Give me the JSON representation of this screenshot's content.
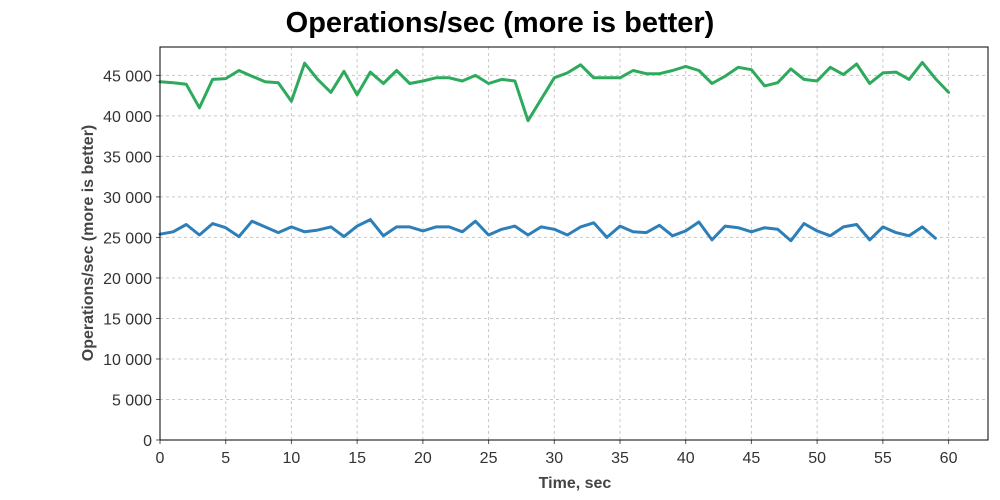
{
  "chart_data": {
    "type": "line",
    "title": "Operations/sec (more is better)",
    "xlabel": "Time, sec",
    "ylabel": "Operations/sec (more is better)",
    "xlim": [
      0,
      63
    ],
    "ylim": [
      0,
      48500
    ],
    "xticks": [
      0,
      5,
      10,
      15,
      20,
      25,
      30,
      35,
      40,
      45,
      50,
      55,
      60
    ],
    "yticks": [
      0,
      5000,
      10000,
      15000,
      20000,
      25000,
      30000,
      35000,
      40000,
      45000
    ],
    "ytick_labels": [
      "0",
      "5 000",
      "10 000",
      "15 000",
      "20 000",
      "25 000",
      "30 000",
      "35 000",
      "40 000",
      "45 000"
    ],
    "grid": true,
    "legend": "none",
    "series": [
      {
        "color": "#2eaa5c",
        "x": [
          0,
          1,
          2,
          3,
          4,
          5,
          6,
          7,
          8,
          9,
          10,
          11,
          12,
          13,
          14,
          15,
          16,
          17,
          18,
          19,
          20,
          21,
          22,
          23,
          24,
          25,
          26,
          27,
          28,
          30,
          31,
          32,
          33,
          34,
          35,
          36,
          37,
          38,
          39,
          40,
          41,
          42,
          43,
          44,
          45,
          46,
          47,
          48,
          49,
          50,
          51,
          52,
          53,
          54,
          55,
          56,
          57,
          58,
          59,
          60
        ],
        "values": [
          44200,
          44100,
          43900,
          41000,
          44500,
          44600,
          45600,
          44900,
          44200,
          44100,
          41800,
          46500,
          44500,
          42900,
          45500,
          42600,
          45400,
          44000,
          45600,
          44000,
          44300,
          44700,
          44700,
          44300,
          45000,
          44000,
          44500,
          44300,
          39400,
          44700,
          45300,
          46300,
          44700,
          44700,
          44700,
          45600,
          45200,
          45200,
          45600,
          46100,
          45600,
          44000,
          44900,
          46000,
          45700,
          43700,
          44100,
          45800,
          44500,
          44300,
          46000,
          45100,
          46400,
          44000,
          45300,
          45400,
          44500,
          46600,
          44600,
          42900
        ]
      },
      {
        "color": "#2e7fb8",
        "x": [
          0,
          1,
          2,
          3,
          4,
          5,
          6,
          7,
          8,
          9,
          10,
          11,
          12,
          13,
          14,
          15,
          16,
          17,
          18,
          19,
          20,
          21,
          22,
          23,
          24,
          25,
          26,
          27,
          28,
          29,
          30,
          31,
          32,
          33,
          34,
          35,
          36,
          37,
          38,
          39,
          40,
          41,
          42,
          43,
          44,
          45,
          46,
          47,
          48,
          49,
          50,
          51,
          52,
          53,
          54,
          55,
          56,
          57,
          58,
          59
        ],
        "values": [
          25400,
          25700,
          26600,
          25300,
          26700,
          26200,
          25100,
          27000,
          26300,
          25600,
          26300,
          25700,
          25900,
          26300,
          25100,
          26400,
          27200,
          25200,
          26300,
          26300,
          25800,
          26300,
          26300,
          25700,
          27000,
          25300,
          26000,
          26400,
          25300,
          26300,
          26000,
          25300,
          26300,
          26800,
          25000,
          26400,
          25700,
          25600,
          26500,
          25200,
          25800,
          26900,
          24700,
          26400,
          26200,
          25700,
          26200,
          26000,
          24600,
          26700,
          25800,
          25200,
          26300,
          26600,
          24700,
          26300,
          25600,
          25200,
          26300,
          24900
        ]
      }
    ]
  }
}
